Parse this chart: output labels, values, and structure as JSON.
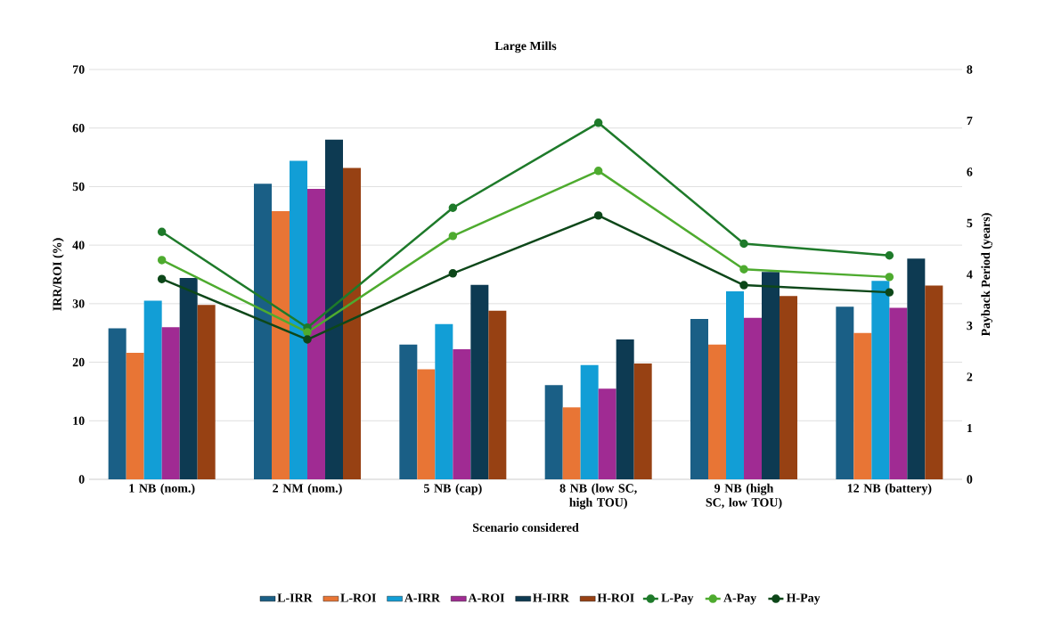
{
  "chart_data": {
    "type": "bar",
    "title": "Large Mills",
    "xlabel": "Scenario considered",
    "ylabel": "IRR/ROI (%)",
    "y2label": "Payback Period (years)",
    "categories": [
      "1 NB (nom.)",
      "2 NM (nom.)",
      "5 NB (cap)",
      "8 NB (low SC, high TOU)",
      "9 NB (high SC, low TOU)",
      "12 NB (battery)"
    ],
    "series": [
      {
        "name": "L-IRR",
        "color": "#1a5f86",
        "values": [
          25.8,
          50.5,
          23.0,
          16.1,
          27.4,
          29.5
        ]
      },
      {
        "name": "L-ROI",
        "color": "#e87535",
        "values": [
          21.6,
          45.8,
          18.8,
          12.3,
          23.0,
          25.0
        ]
      },
      {
        "name": "A-IRR",
        "color": "#129ed6",
        "values": [
          30.5,
          54.4,
          26.5,
          19.5,
          32.1,
          33.9
        ]
      },
      {
        "name": "A-ROI",
        "color": "#a02b93",
        "values": [
          26.0,
          49.6,
          22.2,
          15.5,
          27.6,
          29.3
        ]
      },
      {
        "name": "H-IRR",
        "color": "#0d3a52",
        "values": [
          34.4,
          58.0,
          33.2,
          23.9,
          35.4,
          37.7
        ]
      },
      {
        "name": "H-ROI",
        "color": "#974113",
        "values": [
          29.8,
          53.2,
          28.8,
          19.8,
          31.3,
          33.1
        ]
      },
      {
        "name": "L-Pay",
        "type": "line",
        "axis": "y2",
        "color": "#1e7a2a",
        "values": [
          4.83,
          2.96,
          5.3,
          6.96,
          4.6,
          4.37
        ]
      },
      {
        "name": "A-Pay",
        "type": "line",
        "axis": "y2",
        "color": "#4eab2f",
        "values": [
          4.28,
          2.87,
          4.75,
          6.02,
          4.1,
          3.95
        ]
      },
      {
        "name": "H-Pay",
        "type": "line",
        "axis": "y2",
        "color": "#0d4719",
        "values": [
          3.91,
          2.73,
          4.02,
          5.15,
          3.79,
          3.65
        ]
      }
    ],
    "ylim": [
      0,
      70
    ],
    "yticks": [
      0,
      10,
      20,
      30,
      40,
      50,
      60,
      70
    ],
    "y2lim": [
      0,
      8
    ],
    "y2ticks": [
      0,
      1,
      2,
      3,
      4,
      5,
      6,
      7,
      8
    ],
    "grid": "y",
    "legend": "bottom",
    "marker": "circle",
    "line_style": "solid"
  }
}
